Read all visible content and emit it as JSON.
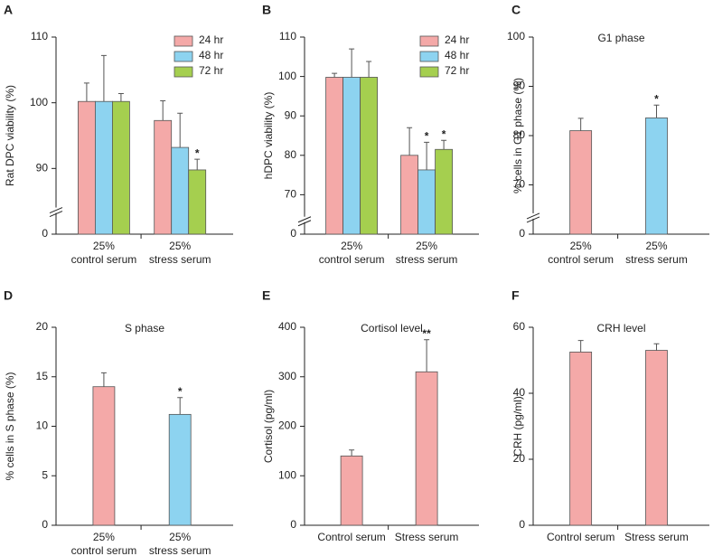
{
  "chart_data": [
    {
      "panel": "A",
      "type": "bar",
      "ylabel": "Rat DPC viability (%)",
      "y_break": true,
      "categories": [
        "25%\ncontrol serum",
        "25%\nstress serum"
      ],
      "ylim": [
        0,
        110
      ],
      "yticks": [
        0,
        90,
        100,
        110
      ],
      "series": [
        {
          "name": "24 hr",
          "color": "#f4a9a8",
          "values": [
            100.2,
            97.3
          ],
          "errors": [
            2.8,
            3.0
          ],
          "significance": [
            null,
            null
          ]
        },
        {
          "name": "48 hr",
          "color": "#8dd3f0",
          "values": [
            100.2,
            93.2
          ],
          "errors": [
            7.0,
            5.2
          ],
          "significance": [
            null,
            null
          ]
        },
        {
          "name": "72 hr",
          "color": "#a5cf4f",
          "values": [
            100.2,
            88.0
          ],
          "errors": [
            1.2,
            3.4
          ],
          "significance": [
            null,
            "*"
          ]
        }
      ]
    },
    {
      "panel": "B",
      "type": "bar",
      "ylabel": "hDPC viability (%)",
      "y_break": true,
      "categories": [
        "25%\ncontrol serum",
        "25%\nstress serum"
      ],
      "ylim": [
        0,
        110
      ],
      "yticks": [
        0,
        70,
        80,
        90,
        100,
        110
      ],
      "series": [
        {
          "name": "24 hr",
          "color": "#f4a9a8",
          "values": [
            99.8,
            80.0
          ],
          "errors": [
            1.0,
            7.0
          ],
          "significance": [
            null,
            null
          ]
        },
        {
          "name": "48 hr",
          "color": "#8dd3f0",
          "values": [
            99.8,
            76.3
          ],
          "errors": [
            7.2,
            7.0
          ],
          "significance": [
            null,
            "*"
          ]
        },
        {
          "name": "72 hr",
          "color": "#a5cf4f",
          "values": [
            99.8,
            81.5
          ],
          "errors": [
            4.0,
            2.3
          ],
          "significance": [
            null,
            "*"
          ]
        }
      ]
    },
    {
      "panel": "C",
      "type": "bar",
      "title": "G1 phase",
      "ylabel": "% cells in G1 phase (%)",
      "y_break": true,
      "categories": [
        "25%\ncontrol serum",
        "25%\nstress serum"
      ],
      "ylim": [
        0,
        100
      ],
      "yticks": [
        0,
        70,
        80,
        90,
        100
      ],
      "series": [
        {
          "colors": [
            "#f4a9a8",
            "#8dd3f0"
          ],
          "values": [
            81.0,
            83.6
          ],
          "errors": [
            2.5,
            2.6
          ],
          "significance": [
            null,
            "*"
          ]
        }
      ]
    },
    {
      "panel": "D",
      "type": "bar",
      "title": "S phase",
      "ylabel": "% cells in S phase (%)",
      "y_break": false,
      "categories": [
        "25%\ncontrol serum",
        "25%\nstress serum"
      ],
      "ylim": [
        0,
        20
      ],
      "yticks": [
        0,
        5,
        10,
        15,
        20
      ],
      "series": [
        {
          "colors": [
            "#f4a9a8",
            "#8dd3f0"
          ],
          "values": [
            14.0,
            11.2
          ],
          "errors": [
            1.4,
            1.7
          ],
          "significance": [
            null,
            "*"
          ]
        }
      ]
    },
    {
      "panel": "E",
      "type": "bar",
      "title": "Cortisol level",
      "ylabel": "Cortisol (pg/ml)",
      "y_break": false,
      "categories": [
        "Control serum",
        "Stress serum"
      ],
      "ylim": [
        0,
        400
      ],
      "yticks": [
        0,
        100,
        200,
        300,
        400
      ],
      "series": [
        {
          "colors": [
            "#f4a9a8",
            "#f4a9a8"
          ],
          "values": [
            140,
            310
          ],
          "errors": [
            12,
            65
          ],
          "significance": [
            null,
            "**"
          ]
        }
      ]
    },
    {
      "panel": "F",
      "type": "bar",
      "title": "CRH level",
      "ylabel": "CRH (pg/ml)",
      "y_break": false,
      "categories": [
        "Control serum",
        "Stress serum"
      ],
      "ylim": [
        0,
        60
      ],
      "yticks": [
        0,
        20,
        40,
        60
      ],
      "series": [
        {
          "colors": [
            "#f4a9a8",
            "#f4a9a8"
          ],
          "values": [
            52.5,
            53.0
          ],
          "errors": [
            3.5,
            2.0
          ],
          "significance": [
            null,
            null
          ]
        }
      ]
    }
  ]
}
